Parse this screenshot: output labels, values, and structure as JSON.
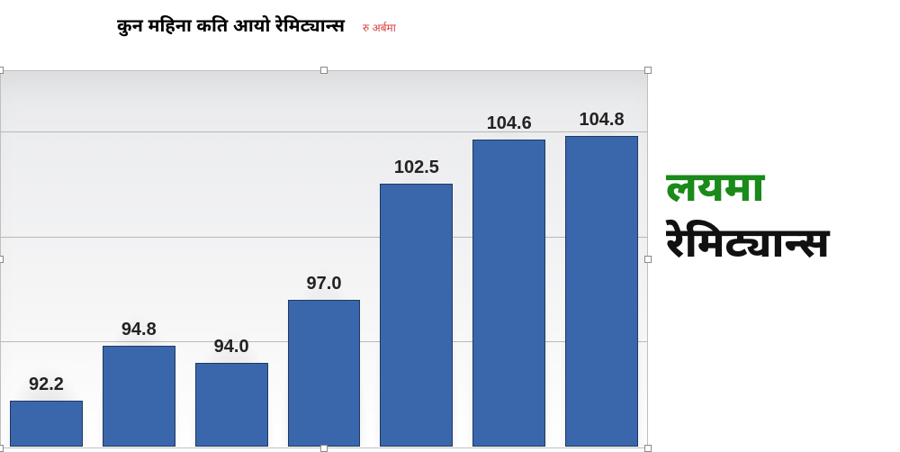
{
  "header": {
    "title": "कुन महिना कति आयो रेमिट्यान्स",
    "title_fontsize": 20,
    "title_color": "#000000",
    "subtitle": "रु अर्बमा",
    "subtitle_fontsize": 12,
    "subtitle_color": "#d94040"
  },
  "chart": {
    "type": "bar",
    "values": [
      92.2,
      94.8,
      94.0,
      97.0,
      102.5,
      104.6,
      104.8
    ],
    "labels": [
      "92.2",
      "94.8",
      "94.0",
      "97.0",
      "102.5",
      "104.6",
      "104.8"
    ],
    "bar_color": "#3a66ab",
    "bar_border_color": "#1f3a63",
    "ylim": [
      90,
      108
    ],
    "gridlines_y": [
      95,
      100,
      105
    ],
    "grid_color": "#b8b8b8",
    "background_gradient_top": "#e9eaec",
    "background_gradient_bottom": "#ffffff",
    "chart_border_color": "#bfbfbf",
    "label_fontsize": 20,
    "label_color": "#222222",
    "selection_handles": true
  },
  "right_text": {
    "line1": "लयमा",
    "line1_color": "#1a8a1a",
    "line2": "रेमिट्यान्स",
    "line2_color": "#111111",
    "fontsize": 46
  }
}
